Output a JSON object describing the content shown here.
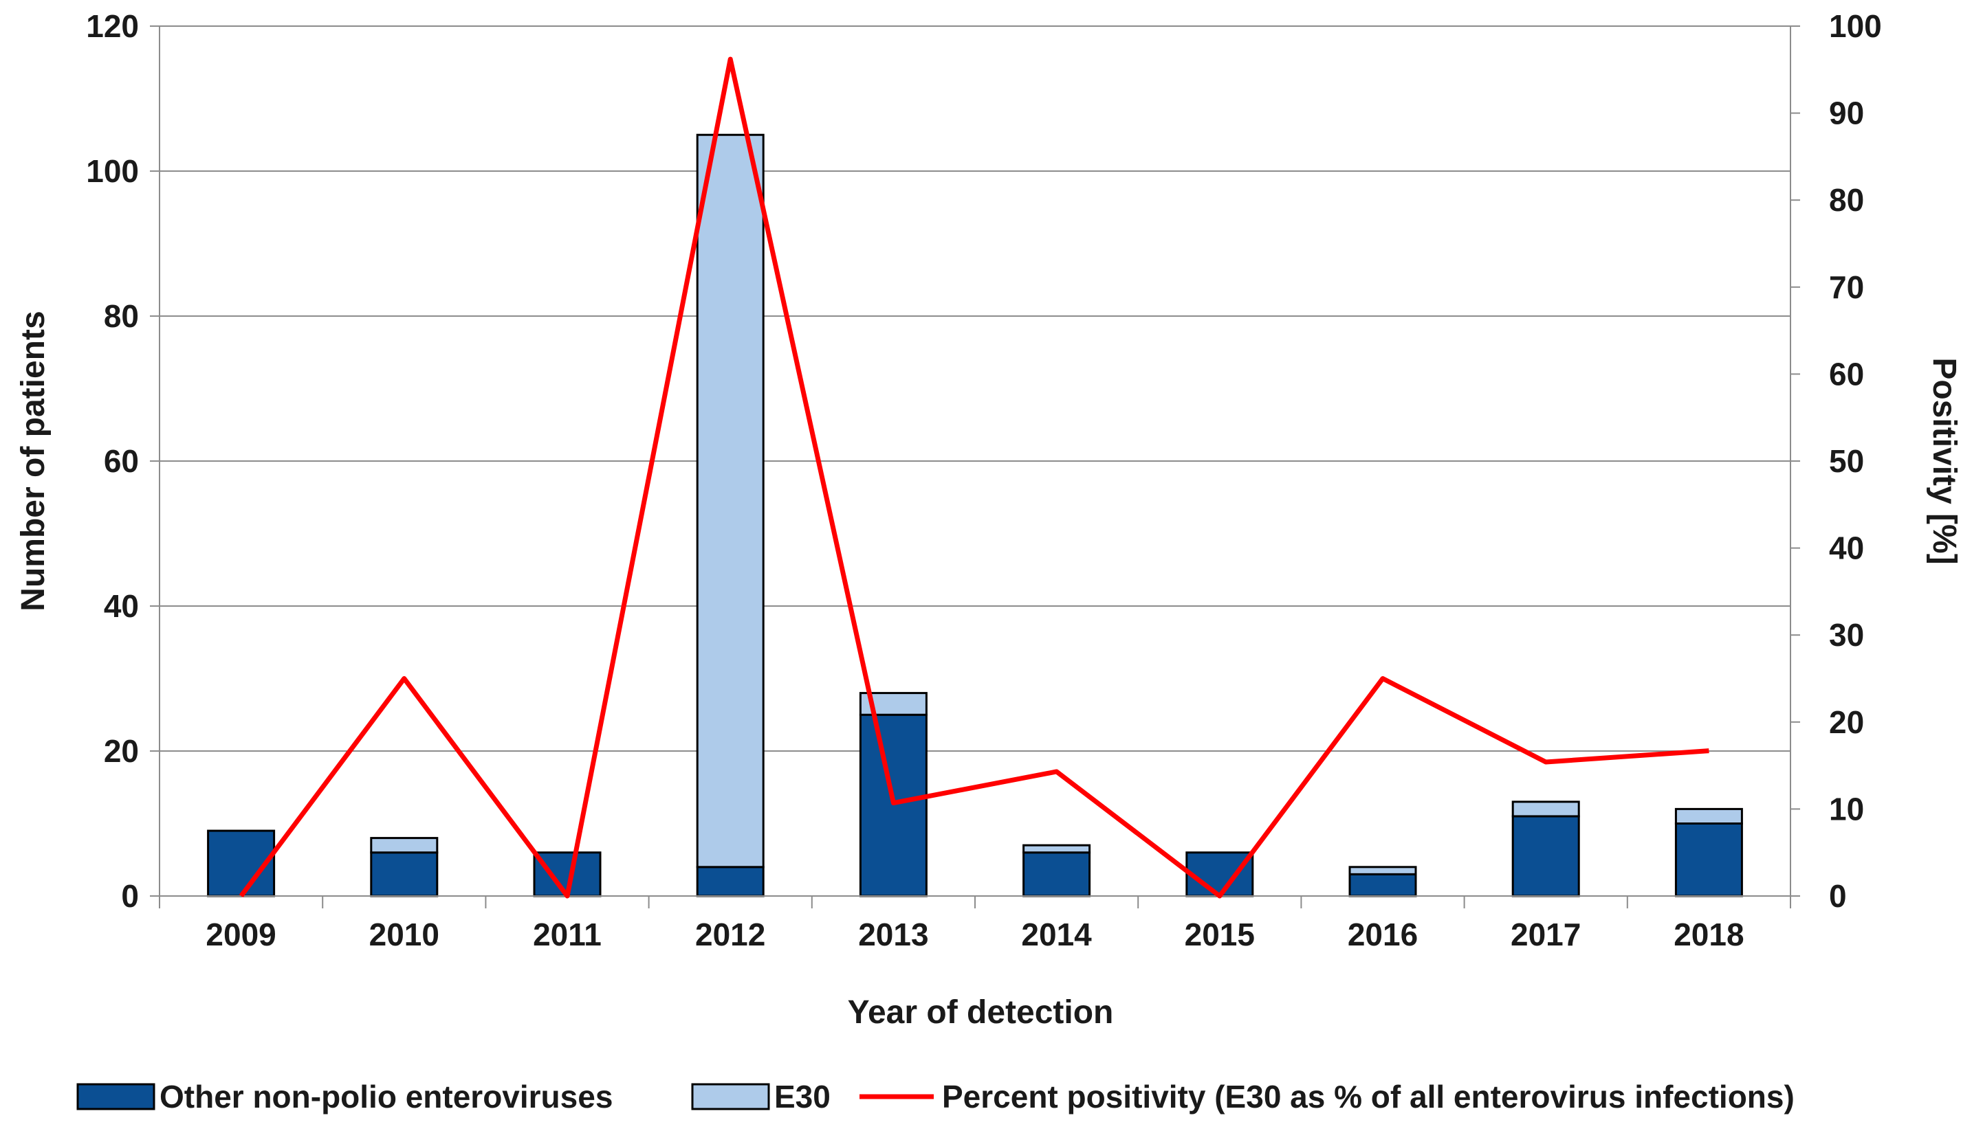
{
  "chart_data": {
    "type": "bar",
    "stacked": true,
    "title": "",
    "xlabel": "Year of detection",
    "ylabel": "Number of patients",
    "y2label": "Positivity [%]",
    "categories": [
      "2009",
      "2010",
      "2011",
      "2012",
      "2013",
      "2014",
      "2015",
      "2016",
      "2017",
      "2018"
    ],
    "ylim": [
      0,
      120
    ],
    "yticks": [
      "0",
      "20",
      "40",
      "60",
      "80",
      "100",
      "120"
    ],
    "y2lim": [
      0,
      100
    ],
    "y2ticks": [
      "0",
      "10",
      "20",
      "30",
      "40",
      "50",
      "60",
      "70",
      "80",
      "90",
      "100"
    ],
    "grid": true,
    "legend_position": "bottom",
    "series": [
      {
        "name": "Other non-polio enteroviruses",
        "kind": "bar",
        "axis": "left",
        "color": "#0B4F93",
        "values": [
          9,
          6,
          6,
          4,
          25,
          6,
          6,
          3,
          11,
          10
        ]
      },
      {
        "name": "E30",
        "kind": "bar",
        "axis": "left",
        "color": "#AECBEA",
        "values": [
          0,
          2,
          0,
          101,
          3,
          1,
          0,
          1,
          2,
          2
        ]
      },
      {
        "name": "Percent positivity (E30 as % of all enterovirus infections)",
        "kind": "line",
        "axis": "right",
        "color": "#FF0000",
        "values": [
          0,
          25,
          0,
          96.2,
          10.7,
          14.3,
          0,
          25,
          15.4,
          16.7
        ]
      }
    ]
  }
}
